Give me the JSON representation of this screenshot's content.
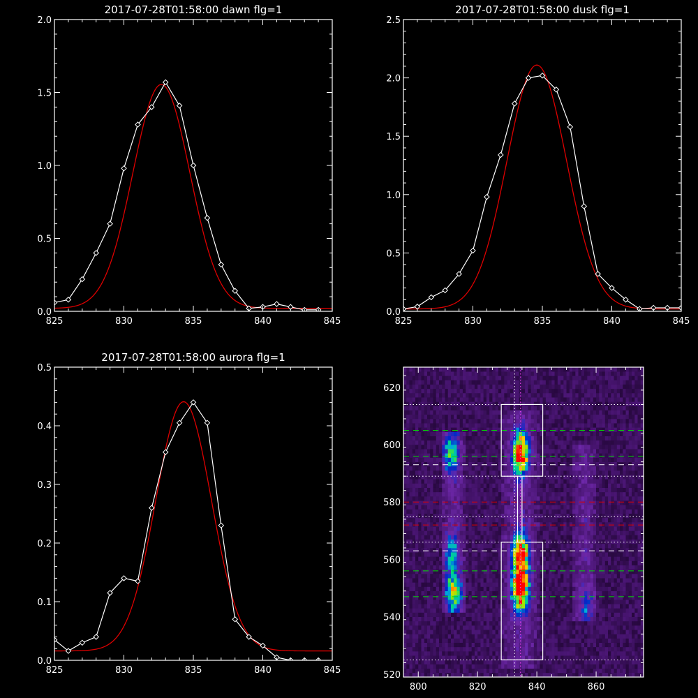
{
  "chart_data": [
    {
      "type": "line",
      "title": "2017-07-28T01:58:00 dawn flg=1",
      "xlim": [
        825,
        845
      ],
      "ylim": [
        0,
        2.0
      ],
      "xticks": [
        825,
        830,
        835,
        840,
        845
      ],
      "yticks": [
        0.0,
        0.5,
        1.0,
        1.5,
        2.0
      ],
      "xtick_labels": [
        "825",
        "830",
        "835",
        "840",
        "845"
      ],
      "ytick_labels": [
        "0.0",
        "0.5",
        "1.0",
        "1.5",
        "2.0"
      ],
      "series": [
        {
          "kind": "observed",
          "color": "#ffffff",
          "x": [
            825,
            826,
            827,
            828,
            829,
            830,
            831,
            832,
            833,
            834,
            835,
            836,
            837,
            838,
            839,
            840,
            841,
            842,
            843,
            844
          ],
          "y": [
            0.06,
            0.08,
            0.22,
            0.4,
            0.6,
            0.98,
            1.28,
            1.4,
            1.57,
            1.41,
            1.0,
            0.64,
            0.32,
            0.14,
            0.02,
            0.03,
            0.05,
            0.03,
            0.01,
            0.01
          ]
        },
        {
          "kind": "gaussian-fit",
          "color": "#dd0000",
          "amplitude": 1.535,
          "center": 832.7,
          "sigma": 2.05,
          "offset": 0.02
        }
      ]
    },
    {
      "type": "line",
      "title": "2017-07-28T01:58:00 dusk flg=1",
      "xlim": [
        825,
        845
      ],
      "ylim": [
        0,
        2.5
      ],
      "xticks": [
        825,
        830,
        835,
        840,
        845
      ],
      "yticks": [
        0.0,
        0.5,
        1.0,
        1.5,
        2.0,
        2.5
      ],
      "xtick_labels": [
        "825",
        "830",
        "835",
        "840",
        "845"
      ],
      "ytick_labels": [
        "0.0",
        "0.5",
        "1.0",
        "1.5",
        "2.0",
        "2.5"
      ],
      "series": [
        {
          "kind": "observed",
          "color": "#ffffff",
          "x": [
            825,
            826,
            827,
            828,
            829,
            830,
            831,
            832,
            833,
            834,
            835,
            836,
            837,
            838,
            839,
            840,
            841,
            842,
            843,
            844,
            845
          ],
          "y": [
            0.02,
            0.04,
            0.12,
            0.18,
            0.32,
            0.52,
            0.98,
            1.34,
            1.78,
            2.0,
            2.02,
            1.9,
            1.58,
            0.9,
            0.32,
            0.2,
            0.1,
            0.02,
            0.03,
            0.03,
            0.03
          ]
        },
        {
          "kind": "gaussian-fit",
          "color": "#dd0000",
          "amplitude": 2.09,
          "center": 834.6,
          "sigma": 2.15,
          "offset": 0.02
        }
      ]
    },
    {
      "type": "line",
      "title": "2017-07-28T01:58:00 aurora flg=1",
      "xlim": [
        825,
        845
      ],
      "ylim": [
        0,
        0.5
      ],
      "xticks": [
        825,
        830,
        835,
        840,
        845
      ],
      "yticks": [
        0.0,
        0.1,
        0.2,
        0.3,
        0.4,
        0.5
      ],
      "xtick_labels": [
        "825",
        "830",
        "835",
        "840",
        "845"
      ],
      "ytick_labels": [
        "0.0",
        "0.1",
        "0.2",
        "0.3",
        "0.4",
        "0.5"
      ],
      "series": [
        {
          "kind": "observed",
          "color": "#ffffff",
          "x": [
            825,
            826,
            827,
            828,
            829,
            830,
            831,
            832,
            833,
            834,
            835,
            836,
            837,
            838,
            839,
            840,
            841,
            842,
            843,
            844
          ],
          "y": [
            0.035,
            0.016,
            0.03,
            0.04,
            0.115,
            0.14,
            0.135,
            0.26,
            0.355,
            0.405,
            0.44,
            0.405,
            0.23,
            0.07,
            0.04,
            0.025,
            0.005,
            0.0,
            0.0,
            0.0
          ]
        },
        {
          "kind": "gaussian-fit",
          "color": "#dd0000",
          "amplitude": 0.425,
          "center": 834.3,
          "sigma": 2.0,
          "offset": 0.016
        }
      ]
    },
    {
      "type": "heatmap",
      "title": "",
      "xlim": [
        795,
        876
      ],
      "ylim": [
        519,
        627
      ],
      "xticks": [
        800,
        820,
        840,
        860
      ],
      "yticks": [
        520,
        540,
        560,
        580,
        600,
        620
      ],
      "xtick_labels": [
        "800",
        "820",
        "840",
        "860"
      ],
      "ytick_labels": [
        "520",
        "540",
        "560",
        "580",
        "600",
        "620"
      ],
      "colormap": "rainbow-on-purple",
      "blobs": [
        {
          "x_range": [
            828,
            841
          ],
          "y_range": [
            522,
            612
          ],
          "peaks": [
            {
              "x": 834.5,
              "y": 550,
              "v": 1.0
            },
            {
              "x": 834.5,
              "y": 562,
              "v": 0.85
            },
            {
              "x": 834.5,
              "y": 597,
              "v": 0.9
            }
          ]
        },
        {
          "x_range": [
            808,
            816
          ],
          "y_range": [
            541,
            605
          ],
          "peaks": [
            {
              "x": 812,
              "y": 548,
              "v": 0.55
            },
            {
              "x": 811,
              "y": 597,
              "v": 0.45
            },
            {
              "x": 811,
              "y": 562,
              "v": 0.35
            }
          ]
        },
        {
          "x_range": [
            852,
            860
          ],
          "y_range": [
            538,
            600
          ],
          "peaks": [
            {
              "x": 857,
              "y": 544,
              "v": 0.18
            }
          ]
        }
      ],
      "boxes": [
        {
          "x": [
            828,
            842
          ],
          "y": [
            589,
            614
          ],
          "color": "#ffffff"
        },
        {
          "x": [
            828,
            842
          ],
          "y": [
            525,
            566
          ],
          "color": "#ffffff"
        }
      ],
      "inner_lines_x": [
        833.5,
        835
      ],
      "hlines": [
        {
          "y": 614,
          "color": "#ffffff",
          "style": "dotted"
        },
        {
          "y": 605,
          "color": "#00dd00",
          "style": "dashed"
        },
        {
          "y": 596,
          "color": "#00dd00",
          "style": "dashed"
        },
        {
          "y": 593,
          "color": "#ffffff",
          "style": "dashed"
        },
        {
          "y": 589,
          "color": "#ffffff",
          "style": "dotted"
        },
        {
          "y": 580,
          "color": "#dd0000",
          "style": "dashed"
        },
        {
          "y": 575,
          "color": "#ffffff",
          "style": "dotted"
        },
        {
          "y": 572,
          "color": "#dd0000",
          "style": "dashed"
        },
        {
          "y": 566,
          "color": "#ffffff",
          "style": "dotted"
        },
        {
          "y": 563,
          "color": "#ffffff",
          "style": "dashed"
        },
        {
          "y": 556,
          "color": "#00dd00",
          "style": "dashed"
        },
        {
          "y": 547,
          "color": "#00dd00",
          "style": "dashed"
        },
        {
          "y": 525,
          "color": "#ffffff",
          "style": "dotted"
        }
      ],
      "vlines": [
        {
          "x": 832.5,
          "color": "#ffffff",
          "style": "dotted"
        },
        {
          "x": 834.5,
          "color": "#ff44ff",
          "style": "dotted"
        }
      ]
    }
  ]
}
